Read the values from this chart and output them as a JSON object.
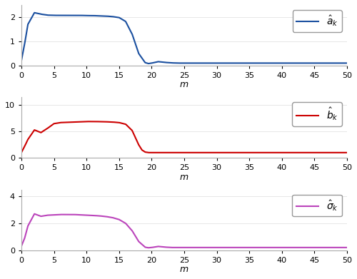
{
  "subplot1": {
    "color": "#1a4f9f",
    "ylim": [
      0,
      2.5
    ],
    "yticks": [
      0,
      1,
      2
    ],
    "legend_label": "$\\hat{a}_k$",
    "x_points": [
      0,
      0.5,
      1,
      2,
      3,
      4,
      5,
      6,
      7,
      8,
      9,
      10,
      11,
      12,
      13,
      14,
      15,
      16,
      17,
      18,
      19,
      19.5,
      20,
      21,
      22,
      23,
      24,
      25,
      30,
      35,
      40,
      45,
      50
    ],
    "y_points": [
      0.2,
      0.9,
      1.7,
      2.18,
      2.12,
      2.08,
      2.07,
      2.07,
      2.07,
      2.07,
      2.07,
      2.06,
      2.06,
      2.05,
      2.04,
      2.02,
      1.98,
      1.82,
      1.3,
      0.5,
      0.12,
      0.08,
      0.1,
      0.16,
      0.13,
      0.11,
      0.1,
      0.1,
      0.1,
      0.1,
      0.1,
      0.1,
      0.1
    ]
  },
  "subplot2": {
    "color": "#cc0000",
    "ylim": [
      0,
      11.5
    ],
    "yticks": [
      0,
      5,
      10
    ],
    "legend_label": "$\\hat{b}_k$",
    "x_points": [
      0,
      0.5,
      1,
      2,
      3,
      4,
      5,
      6,
      7,
      8,
      9,
      10,
      11,
      12,
      13,
      14,
      15,
      16,
      17,
      18,
      18.5,
      19,
      19.5,
      20,
      21,
      25,
      30,
      35,
      40,
      45,
      50
    ],
    "y_points": [
      1.0,
      2.2,
      3.5,
      5.3,
      4.8,
      5.6,
      6.5,
      6.7,
      6.75,
      6.8,
      6.85,
      6.9,
      6.9,
      6.88,
      6.85,
      6.8,
      6.7,
      6.4,
      5.2,
      2.5,
      1.5,
      1.1,
      1.0,
      1.0,
      1.0,
      1.0,
      1.0,
      1.0,
      1.0,
      1.0,
      1.0
    ]
  },
  "subplot3": {
    "color": "#bb44bb",
    "ylim": [
      0,
      4.5
    ],
    "yticks": [
      0,
      2,
      4
    ],
    "legend_label": "$\\hat{\\sigma}_k$",
    "x_points": [
      0,
      0.5,
      1,
      2,
      3,
      4,
      5,
      6,
      7,
      8,
      9,
      10,
      11,
      12,
      13,
      14,
      15,
      16,
      17,
      18,
      19,
      19.5,
      20,
      21,
      22,
      23,
      24,
      25,
      30,
      35,
      40,
      45,
      50
    ],
    "y_points": [
      0.3,
      0.9,
      1.8,
      2.7,
      2.52,
      2.6,
      2.62,
      2.65,
      2.65,
      2.65,
      2.63,
      2.6,
      2.58,
      2.55,
      2.5,
      2.42,
      2.28,
      2.0,
      1.45,
      0.65,
      0.22,
      0.18,
      0.2,
      0.28,
      0.23,
      0.2,
      0.2,
      0.2,
      0.2,
      0.2,
      0.2,
      0.2,
      0.2
    ]
  },
  "xlabel": "m",
  "xticks": [
    0,
    5,
    10,
    15,
    20,
    25,
    30,
    35,
    40,
    45,
    50
  ],
  "xlim": [
    0,
    50
  ],
  "linewidth": 1.5
}
